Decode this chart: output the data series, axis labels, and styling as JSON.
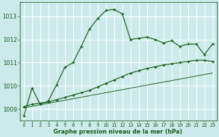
{
  "xlabel": "Graphe pression niveau de la mer (hPa)",
  "bg_color": "#cceaea",
  "grid_color": "#b0d8d8",
  "line_color": "#1a5c1a",
  "line1_x": [
    0,
    1,
    2,
    3,
    4,
    5,
    6,
    7,
    8,
    9,
    10,
    11,
    12,
    13,
    14,
    15,
    16,
    17,
    18,
    19,
    20,
    21,
    22,
    23
  ],
  "line1_y": [
    1008.7,
    1009.9,
    1009.2,
    1009.35,
    1010.05,
    1010.8,
    1011.0,
    1011.7,
    1012.45,
    1012.9,
    1013.25,
    1013.3,
    1013.1,
    1012.0,
    1012.05,
    1012.1,
    1012.0,
    1011.85,
    1011.95,
    1011.7,
    1011.8,
    1011.8,
    1011.35,
    1011.8
  ],
  "line2_x": [
    0,
    1,
    2,
    3,
    4,
    5,
    6,
    7,
    8,
    9,
    10,
    11,
    12,
    13,
    14,
    15,
    16,
    17,
    18,
    19,
    20,
    21,
    22,
    23
  ],
  "line2_y": [
    1009.1,
    1009.2,
    1009.25,
    1009.3,
    1009.4,
    1009.5,
    1009.6,
    1009.7,
    1009.8,
    1009.95,
    1010.1,
    1010.25,
    1010.4,
    1010.55,
    1010.65,
    1010.75,
    1010.82,
    1010.9,
    1010.95,
    1011.0,
    1011.05,
    1011.1,
    1011.1,
    1011.05
  ],
  "line3_x": [
    0,
    23
  ],
  "line3_y": [
    1009.05,
    1010.55
  ],
  "ylim": [
    1008.5,
    1013.6
  ],
  "yticks": [
    1009,
    1010,
    1011,
    1012,
    1013
  ],
  "xticks": [
    0,
    1,
    2,
    3,
    4,
    5,
    6,
    7,
    8,
    9,
    10,
    11,
    12,
    13,
    14,
    15,
    16,
    17,
    18,
    19,
    20,
    21,
    22,
    23
  ]
}
